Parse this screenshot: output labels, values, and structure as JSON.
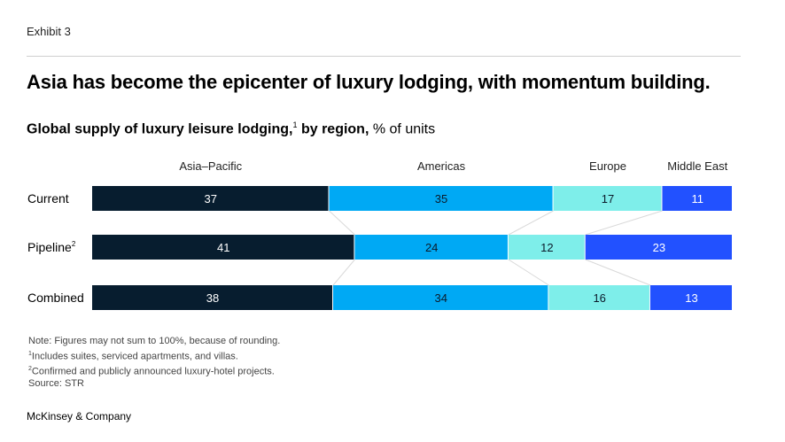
{
  "header": {
    "exhibit": "Exhibit 3",
    "title": "Asia has become the epicenter of luxury lodging, with momentum building.",
    "subtitle_bold": "Global supply of luxury leisure lodging,",
    "subtitle_sup": "1",
    "subtitle_bold_2": " by region,",
    "subtitle_rest": " % of units"
  },
  "chart_data": {
    "type": "bar",
    "orientation": "horizontal-stacked-100",
    "categories": [
      "Current",
      "Pipeline",
      "Combined"
    ],
    "category_sups": [
      "",
      "2",
      ""
    ],
    "series": [
      {
        "name": "Asia–Pacific",
        "values": [
          37,
          41,
          38
        ],
        "color": "#071d2f",
        "label_color": "#ffffff"
      },
      {
        "name": "Americas",
        "values": [
          35,
          24,
          34
        ],
        "color": "#00a9f4",
        "label_color": "#0b1a2a"
      },
      {
        "name": "Europe",
        "values": [
          17,
          12,
          16
        ],
        "color": "#7eeeea",
        "label_color": "#0b1a2a"
      },
      {
        "name": "Middle East",
        "values": [
          11,
          23,
          13
        ],
        "color": "#2251ff",
        "label_color": "#ffffff"
      }
    ],
    "connector_color": "#d9d9d9"
  },
  "notes": {
    "note": "Note: Figures may not sum to 100%, because of rounding.",
    "fn1_mark": "1",
    "fn1": "Includes suites, serviced apartments, and villas.",
    "fn2_mark": "2",
    "fn2": "Confirmed and publicly announced luxury-hotel projects.",
    "source": "Source: STR"
  },
  "footer": {
    "brand": "McKinsey & Company"
  }
}
